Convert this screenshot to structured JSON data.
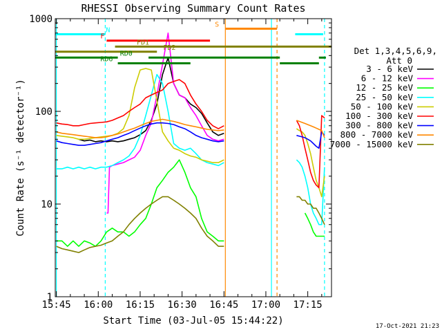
{
  "chart_data": {
    "type": "line",
    "title": "RHESSI Observing Summary Count Rates",
    "xlabel": "Start Time (03-Jul-05 15:44:22)",
    "ylabel": "Count Rate (s⁻¹ detector⁻¹)",
    "yscale": "log",
    "ylim": [
      1,
      1000
    ],
    "xlim_minutes": [
      -0.4,
      98.5
    ],
    "x_ticks": [
      "15:45",
      "16:00",
      "16:15",
      "16:30",
      "16:45",
      "17:00",
      "17:15"
    ],
    "x_tick_minutes": [
      0,
      15,
      30,
      45,
      60,
      75,
      90
    ],
    "y_ticks": [
      "1",
      "10",
      "100",
      "1000"
    ],
    "y_tick_values": [
      1,
      10,
      100,
      1000
    ],
    "grid": false,
    "legend_position": "right",
    "detector_header": [
      "Det 1,3,4,5,6,9,",
      "Att 0"
    ],
    "timestamp": "17-Oct-2021 21:23",
    "series": [
      {
        "name": "3 - 6 keV",
        "color": "#000000",
        "segments": [
          {
            "x": [
              8,
              10,
              12,
              14,
              16,
              18,
              20,
              22,
              24,
              26,
              28,
              30,
              32,
              34,
              36,
              38,
              40,
              42,
              44,
              46,
              48,
              50,
              52,
              54,
              56,
              58,
              60
            ],
            "y": [
              50,
              48,
              49,
              47,
              48,
              47,
              48,
              47,
              48,
              50,
              52,
              56,
              62,
              80,
              120,
              250,
              380,
              200,
              150,
              140,
              120,
              110,
              95,
              75,
              60,
              55,
              58
            ]
          }
        ]
      },
      {
        "name": "6 - 12 keV",
        "color": "#ff00ff",
        "segments": [
          {
            "x": [
              18,
              18.5,
              19,
              20,
              22,
              24,
              26,
              28,
              30,
              32,
              34,
              36,
              38,
              40,
              42,
              44,
              46,
              48,
              50,
              52,
              54,
              56,
              58,
              60
            ],
            "y": [
              8,
              8,
              25,
              26,
              27,
              28,
              30,
              32,
              38,
              55,
              75,
              150,
              320,
              700,
              200,
              150,
              140,
              110,
              90,
              70,
              55,
              50,
              48,
              50
            ]
          }
        ]
      },
      {
        "name": "12 - 25 keV",
        "color": "#00ff00",
        "segments": [
          {
            "x": [
              0,
              2,
              4,
              6,
              8,
              10,
              12,
              14,
              16,
              18,
              20,
              22,
              24,
              26,
              28,
              30,
              32,
              34,
              36,
              38,
              40,
              42,
              44,
              46,
              48,
              50,
              52,
              54,
              56,
              58,
              60
            ],
            "y": [
              4,
              4,
              3.5,
              4,
              3.5,
              4,
              3.8,
              3.5,
              4,
              5,
              5.5,
              5,
              5,
              4.5,
              5,
              6,
              7,
              10,
              15,
              18,
              22,
              25,
              30,
              22,
              15,
              12,
              7,
              5,
              4.5,
              4,
              4
            ]
          },
          {
            "x": [
              89,
              90,
              91,
              92,
              93,
              94,
              95,
              96
            ],
            "y": [
              8,
              7,
              6,
              5,
              4.5,
              4.5,
              4.5,
              4.5
            ]
          }
        ]
      },
      {
        "name": "25 - 50 keV",
        "color": "#00ffff",
        "segments": [
          {
            "x": [
              0,
              2,
              4,
              6,
              8,
              10,
              12,
              14,
              16,
              18,
              20,
              22,
              24,
              26,
              28,
              30,
              32,
              34,
              36,
              38,
              40,
              42,
              44,
              46,
              48,
              50,
              52,
              54,
              56,
              58,
              60
            ],
            "y": [
              24,
              24,
              25,
              24,
              25,
              24,
              25,
              24,
              25,
              25,
              26,
              28,
              30,
              33,
              40,
              55,
              90,
              150,
              250,
              200,
              100,
              45,
              40,
              38,
              40,
              35,
              30,
              28,
              27,
              26,
              28
            ]
          },
          {
            "x": [
              86,
              87,
              88,
              89,
              90,
              91,
              92,
              93,
              94,
              95,
              96
            ],
            "y": [
              30,
              28,
              25,
              20,
              15,
              10,
              8,
              7,
              6,
              6,
              25
            ]
          }
        ]
      },
      {
        "name": "50 - 100 keV",
        "color": "#cccc00",
        "segments": [
          {
            "x": [
              0,
              2,
              4,
              6,
              8,
              10,
              12,
              14,
              16,
              18,
              20,
              22,
              24,
              26,
              28,
              30,
              32,
              34,
              36,
              38,
              40,
              42,
              44,
              46,
              48,
              50,
              52,
              54,
              56,
              58,
              60
            ],
            "y": [
              55,
              54,
              53,
              52,
              50,
              50,
              51,
              52,
              53,
              54,
              55,
              58,
              65,
              90,
              180,
              280,
              290,
              280,
              130,
              60,
              48,
              40,
              38,
              35,
              33,
              32,
              30,
              29,
              28,
              28,
              30
            ]
          },
          {
            "x": [
              86,
              87,
              88,
              89,
              90,
              91,
              92,
              93,
              94,
              95,
              96
            ],
            "y": [
              65,
              62,
              60,
              55,
              45,
              35,
              25,
              18,
              15,
              12,
              20
            ]
          }
        ]
      },
      {
        "name": "100 - 300 keV",
        "color": "#ff0000",
        "segments": [
          {
            "x": [
              0,
              2,
              4,
              6,
              8,
              10,
              12,
              14,
              16,
              18,
              20,
              22,
              24,
              26,
              28,
              30,
              32,
              34,
              36,
              38,
              40,
              42,
              44,
              46,
              48,
              50,
              52,
              54,
              56,
              58,
              60
            ],
            "y": [
              75,
              73,
              72,
              70,
              70,
              72,
              74,
              75,
              76,
              77,
              80,
              85,
              90,
              100,
              110,
              120,
              140,
              150,
              160,
              170,
              200,
              210,
              220,
              200,
              150,
              120,
              100,
              80,
              70,
              65,
              70
            ]
          },
          {
            "x": [
              86,
              87,
              88,
              89,
              90,
              91,
              92,
              93,
              94,
              95,
              96
            ],
            "y": [
              80,
              70,
              55,
              40,
              30,
              22,
              18,
              16,
              15,
              90,
              85
            ]
          }
        ]
      },
      {
        "name": "300 - 800 keV",
        "color": "#0000ff",
        "segments": [
          {
            "x": [
              0,
              2,
              4,
              6,
              8,
              10,
              12,
              14,
              16,
              18,
              20,
              22,
              24,
              26,
              28,
              30,
              32,
              34,
              36,
              38,
              40,
              42,
              44,
              46,
              48,
              50,
              52,
              54,
              56,
              58,
              60
            ],
            "y": [
              48,
              46,
              45,
              44,
              43,
              43,
              44,
              45,
              46,
              48,
              50,
              52,
              55,
              58,
              62,
              66,
              70,
              73,
              75,
              75,
              74,
              72,
              68,
              65,
              60,
              55,
              52,
              50,
              48,
              47,
              48
            ]
          },
          {
            "x": [
              86,
              87,
              88,
              89,
              90,
              91,
              92,
              93,
              94,
              95,
              96
            ],
            "y": [
              55,
              54,
              53,
              52,
              50,
              48,
              45,
              42,
              40,
              60,
              55
            ]
          }
        ]
      },
      {
        "name": "800 - 7000 keV",
        "color": "#ff8800",
        "segments": [
          {
            "x": [
              0,
              2,
              4,
              6,
              8,
              10,
              12,
              14,
              16,
              18,
              20,
              22,
              24,
              26,
              28,
              30,
              32,
              34,
              36,
              38,
              40,
              42,
              44,
              46,
              48,
              50,
              52,
              54,
              56,
              58,
              60
            ],
            "y": [
              60,
              58,
              57,
              56,
              55,
              54,
              53,
              52,
              52,
              53,
              55,
              57,
              60,
              63,
              66,
              70,
              74,
              78,
              80,
              82,
              80,
              78,
              75,
              72,
              70,
              68,
              66,
              64,
              63,
              62,
              63
            ]
          },
          {
            "x": [
              86,
              87,
              88,
              89,
              90,
              91,
              92,
              93,
              94,
              95,
              96
            ],
            "y": [
              80,
              78,
              76,
              74,
              72,
              70,
              68,
              66,
              64,
              62,
              52
            ]
          }
        ]
      },
      {
        "name": "7000 - 15000 keV",
        "color": "#808000",
        "segments": [
          {
            "x": [
              0,
              2,
              4,
              6,
              8,
              10,
              12,
              14,
              16,
              18,
              20,
              22,
              24,
              26,
              28,
              30,
              32,
              34,
              36,
              38,
              40,
              42,
              44,
              46,
              48,
              50,
              52,
              54,
              56,
              58,
              60
            ],
            "y": [
              3.5,
              3.3,
              3.2,
              3.1,
              3,
              3.2,
              3.4,
              3.5,
              3.6,
              3.8,
              4,
              4.5,
              5,
              6,
              7,
              8,
              9,
              10,
              11,
              12,
              12,
              11,
              10,
              9,
              8,
              7,
              5.5,
              4.5,
              4,
              3.5,
              3.5
            ]
          },
          {
            "x": [
              86,
              87,
              88,
              89,
              90,
              91,
              92,
              93,
              94,
              95,
              96
            ],
            "y": [
              12,
              12,
              11,
              11,
              10,
              10,
              9,
              9,
              8,
              7,
              6
            ]
          }
        ]
      }
    ],
    "flag_bars": [
      {
        "label": "N",
        "color": "#00ffff",
        "label_minute": 18.5,
        "level": 680,
        "intervals": [
          [
            -0.4,
            17.5
          ],
          [
            85.5,
            95.5
          ]
        ]
      },
      {
        "label": "S",
        "color": "#ff8800",
        "label_minute": 57.5,
        "level": 780,
        "intervals": [
          [
            60.5,
            79
          ]
        ]
      },
      {
        "label": "F",
        "color": "#ff0000",
        "label_minute": 16.5,
        "level": 580,
        "intervals": [
          [
            18,
            55
          ]
        ]
      },
      {
        "label": "FD1",
        "color": "#808000",
        "label_minute": 31,
        "level": 500,
        "intervals": [
          [
            21,
            98.5
          ]
        ]
      },
      {
        "label": "FD2",
        "color": "#808000",
        "label_minute": 40.5,
        "level": 440,
        "intervals": [
          [
            -0.4,
            36
          ]
        ]
      },
      {
        "label": "RD0",
        "color": "#008000",
        "label_minute": 25,
        "level": 380,
        "intervals": [
          [
            -0.4,
            22
          ],
          [
            33,
            80
          ],
          [
            94,
            96.5
          ]
        ]
      },
      {
        "label": "RD6",
        "color": "#008000",
        "label_minute": 18,
        "level": 330,
        "intervals": [
          [
            22,
            48
          ],
          [
            80,
            94
          ]
        ]
      }
    ],
    "vertical_markers": [
      {
        "minute": 0,
        "color": "#00ffff",
        "style": "solid"
      },
      {
        "minute": 17.5,
        "color": "#00ffff",
        "style": "dashed"
      },
      {
        "minute": 60.5,
        "color": "#ff8800",
        "style": "solid"
      },
      {
        "minute": 77,
        "color": "#00ffff",
        "style": "solid"
      },
      {
        "minute": 79,
        "color": "#ff8800",
        "style": "dashed"
      },
      {
        "minute": 96,
        "color": "#00ffff",
        "style": "dashed"
      }
    ]
  }
}
